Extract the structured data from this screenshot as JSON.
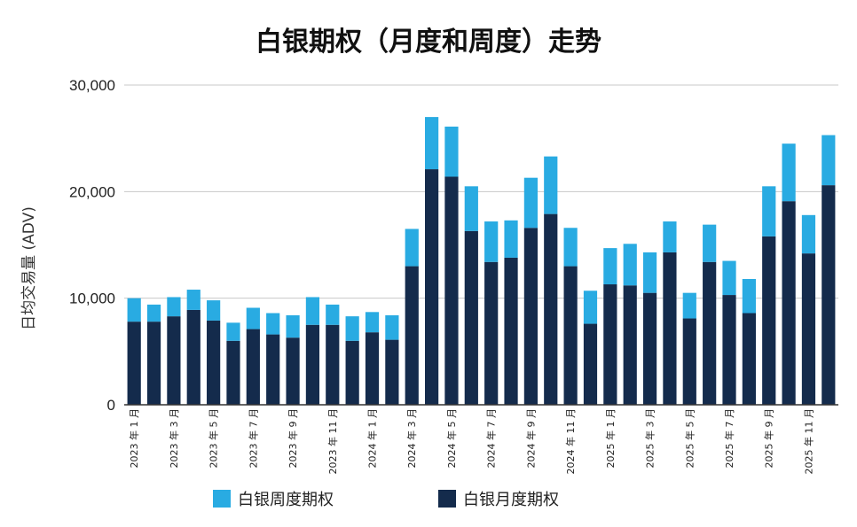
{
  "chart_data": {
    "type": "bar",
    "stacked": true,
    "title": "白银期权（月度和周度）走势",
    "ylabel": "日均交易量 (ADV)",
    "ylim": [
      0,
      30000
    ],
    "yticks": [
      0,
      10000,
      20000,
      30000
    ],
    "ytick_labels": [
      "0",
      "10,000",
      "20,000",
      "30,000"
    ],
    "grid": true,
    "legend_position": "bottom",
    "categories": [
      "2023-01",
      "2023-02",
      "2023-03",
      "2023-04",
      "2023-05",
      "2023-06",
      "2023-07",
      "2023-08",
      "2023-09",
      "2023-10",
      "2023-11",
      "2023-12",
      "2024-01",
      "2024-02",
      "2024-03",
      "2024-04",
      "2024-05",
      "2024-06",
      "2024-07",
      "2024-08",
      "2024-09",
      "2024-10",
      "2024-11",
      "2024-12",
      "2025-01",
      "2025-02",
      "2025-03",
      "2025-04",
      "2025-05",
      "2025-06",
      "2025-07",
      "2025-08",
      "2025-09",
      "2025-10",
      "2025-11",
      "2025-12"
    ],
    "x_tick_labels": [
      "2023 年 1 月",
      "",
      "2023 年 3 月",
      "",
      "2023 年 5 月",
      "",
      "2023 年 7 月",
      "",
      "2023 年 9 月",
      "",
      "2023 年 11 月",
      "",
      "2024 年 1 月",
      "",
      "2024 年 3 月",
      "",
      "2024 年 5 月",
      "",
      "2024 年 7 月",
      "",
      "2024 年 9 月",
      "",
      "2024 年 11 月",
      "",
      "2025 年 1 月",
      "",
      "2025 年 3 月",
      "",
      "2025 年 5 月",
      "",
      "2025 年 7 月",
      "",
      "2025 年 9 月",
      "",
      "2025 年 11 月",
      ""
    ],
    "series": [
      {
        "name": "白银月度期权",
        "color": "#142b4c",
        "values": [
          7800,
          7800,
          8300,
          8900,
          7900,
          6000,
          7100,
          6600,
          6300,
          7500,
          7500,
          6000,
          6800,
          6100,
          13000,
          22100,
          21400,
          16300,
          13400,
          13800,
          16600,
          17900,
          13000,
          7600,
          11300,
          11200,
          10500,
          14300,
          8100,
          13400,
          10300,
          8600,
          15800,
          19100,
          14200,
          20600
        ]
      },
      {
        "name": "白银周度期权",
        "color": "#29abe2",
        "values": [
          2200,
          1600,
          1800,
          1900,
          1900,
          1700,
          2000,
          2000,
          2100,
          2600,
          1900,
          2300,
          1900,
          2300,
          3500,
          4900,
          4700,
          4200,
          3800,
          3500,
          4700,
          5400,
          3600,
          3100,
          3400,
          3900,
          3800,
          2900,
          2400,
          3500,
          3200,
          3200,
          4700,
          5400,
          3600,
          4700
        ]
      }
    ]
  },
  "legend": {
    "items": [
      {
        "label": "白银周度期权",
        "color": "#29abe2"
      },
      {
        "label": "白银月度期权",
        "color": "#142b4c"
      }
    ]
  },
  "colors": {
    "grid": "#c8c8c8",
    "axis": "#333333"
  }
}
